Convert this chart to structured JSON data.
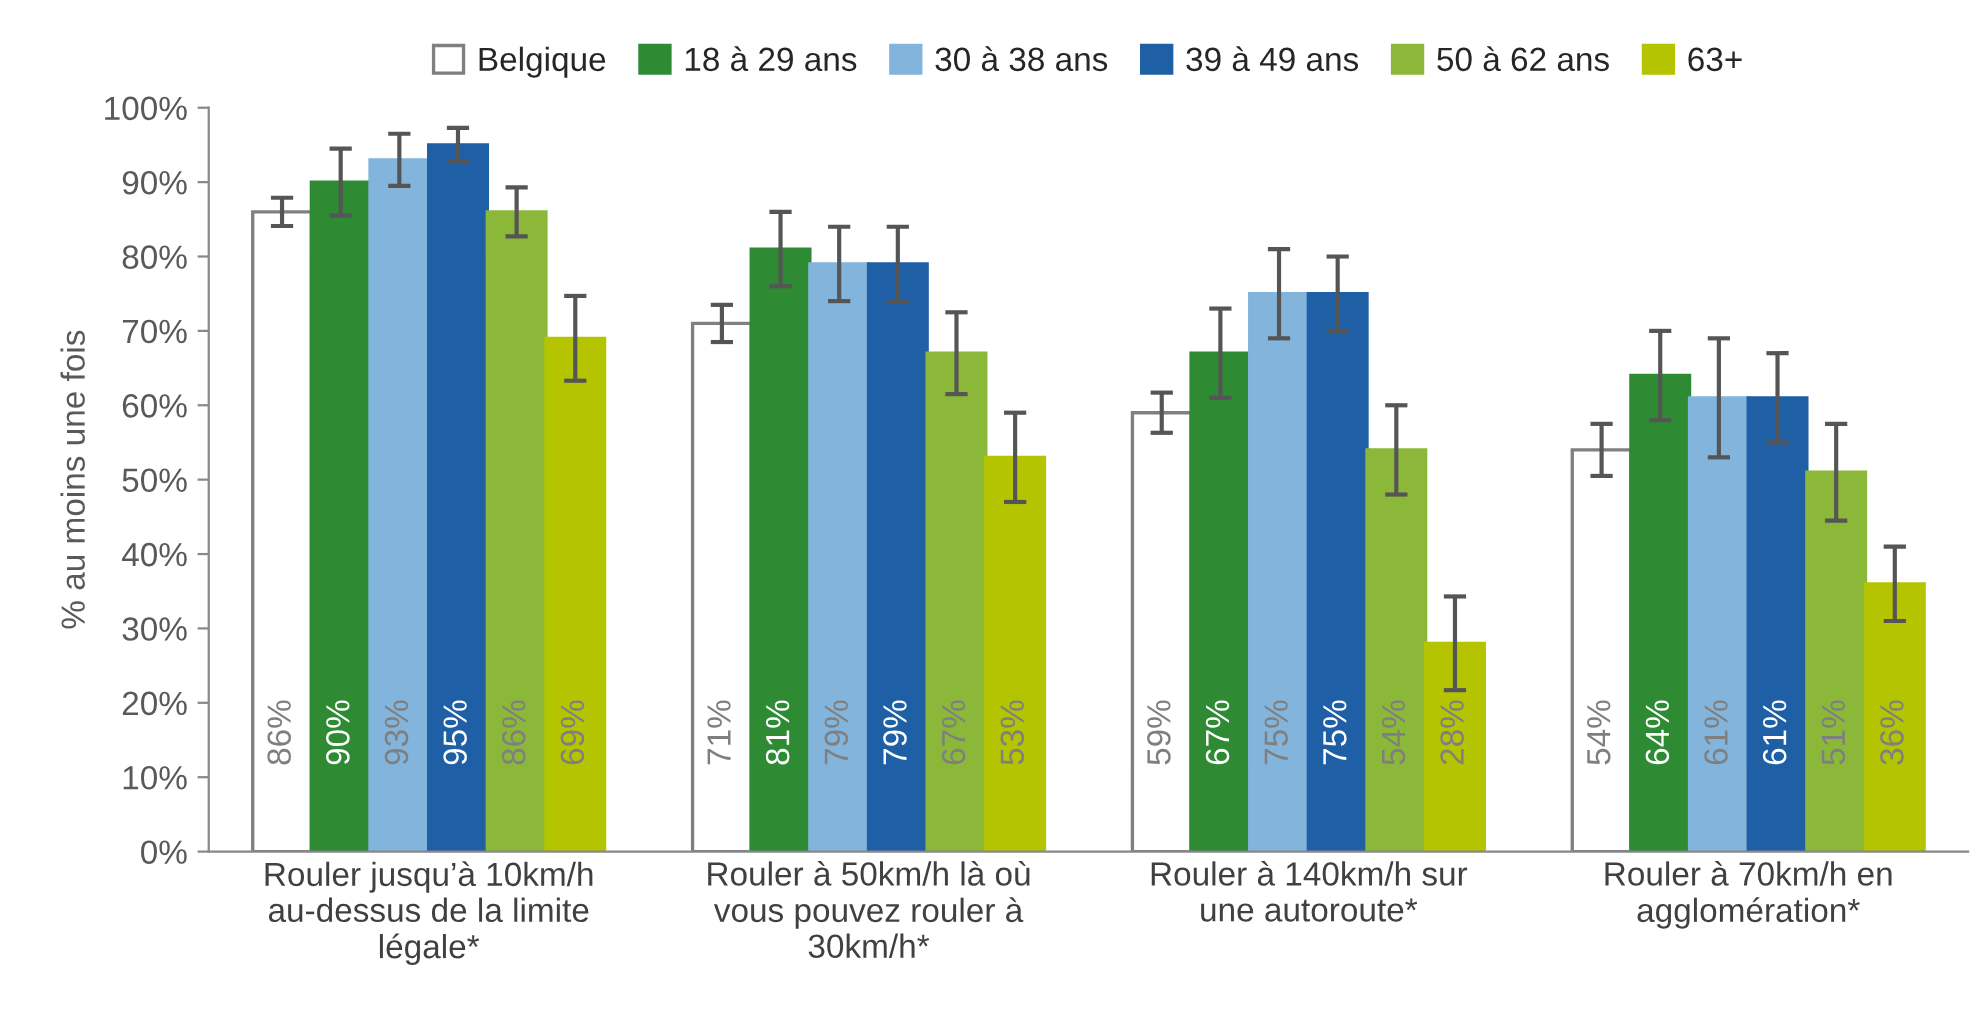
{
  "chart_data": {
    "type": "bar",
    "ylabel": "% au moins une fois",
    "categories": [
      "Rouler jusqu’à 10km/h au-dessus de la limite légale*",
      "Rouler à 50km/h là où vous pouvez rouler à 30km/h*",
      "Rouler à 140km/h sur une autoroute*",
      "Rouler à 70km/h en agglomération*"
    ],
    "series": [
      {
        "name": "Belgique",
        "color": "#ffffff",
        "values": [
          86,
          71,
          59,
          54
        ],
        "value_labels": [
          "86%",
          "71%",
          "59%",
          "54%"
        ],
        "errors": [
          1.9,
          2.5,
          2.7,
          3.5
        ]
      },
      {
        "name": "18 à 29 ans",
        "color": "#2e8b34",
        "values": [
          90,
          81,
          67,
          64
        ],
        "value_labels": [
          "90%",
          "81%",
          "67%",
          "64%"
        ],
        "errors": [
          4.5,
          5,
          6,
          6
        ]
      },
      {
        "name": "30 à 38 ans",
        "color": "#82b4dc",
        "values": [
          93,
          79,
          75,
          61
        ],
        "value_labels": [
          "93%",
          "79%",
          "75%",
          "61%"
        ],
        "errors": [
          3.5,
          5,
          6,
          8
        ]
      },
      {
        "name": "39 à 49 ans",
        "color": "#1f5fa6",
        "values": [
          95,
          79,
          75,
          61
        ],
        "value_labels": [
          "95%",
          "79%",
          "75%",
          "61%"
        ],
        "errors": [
          2.3,
          5,
          5,
          6
        ]
      },
      {
        "name": "50 à 62 ans",
        "color": "#8cb83a",
        "values": [
          86,
          67,
          54,
          51
        ],
        "value_labels": [
          "86%",
          "67%",
          "54%",
          "51%"
        ],
        "errors": [
          3.3,
          5.5,
          6,
          6.5
        ]
      },
      {
        "name": "63+",
        "color": "#b4c400",
        "values": [
          69,
          53,
          28,
          36
        ],
        "value_labels": [
          "69%",
          "53%",
          "28%",
          "36%"
        ],
        "errors": [
          5.7,
          6,
          6.3,
          5
        ]
      }
    ],
    "ylim": [
      0,
      100
    ],
    "yticks": [
      {
        "value": 0,
        "label": "0%"
      },
      {
        "value": 10,
        "label": "10%"
      },
      {
        "value": 20,
        "label": "20%"
      },
      {
        "value": 30,
        "label": "30%"
      },
      {
        "value": 40,
        "label": "40%"
      },
      {
        "value": 50,
        "label": "50%"
      },
      {
        "value": 60,
        "label": "60%"
      },
      {
        "value": 70,
        "label": "70%"
      },
      {
        "value": 80,
        "label": "80%"
      },
      {
        "value": 90,
        "label": "90%"
      },
      {
        "value": 100,
        "label": "100%"
      }
    ],
    "legend": "top",
    "grid": false
  }
}
